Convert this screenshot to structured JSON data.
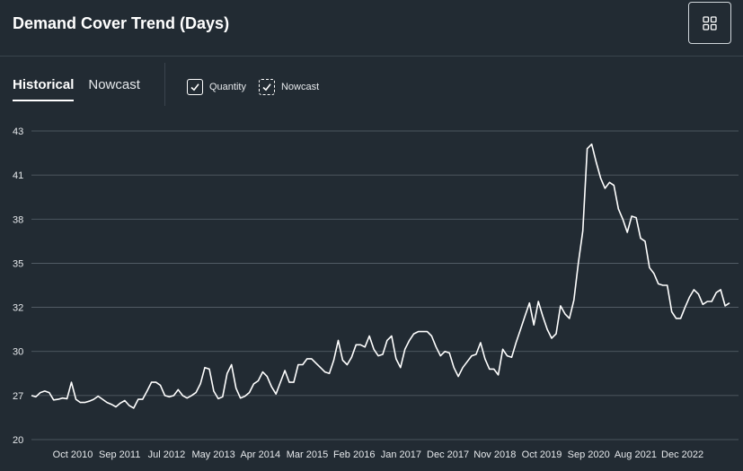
{
  "header": {
    "title": "Demand Cover Trend (Days)"
  },
  "tabs": [
    {
      "label": "Historical",
      "active": true
    },
    {
      "label": "Nowcast",
      "active": false
    }
  ],
  "legend": {
    "quantity_label": "Quantity",
    "nowcast_label": "Nowcast"
  },
  "colors": {
    "background": "#222b33",
    "line": "#ffffff",
    "grid": "#5a646d"
  },
  "chart_data": {
    "type": "line",
    "title": "Demand Cover Trend (Days)",
    "xlabel": "",
    "ylabel": "",
    "grid": true,
    "y_ticks": [
      "43",
      "41",
      "38",
      "35",
      "32",
      "30",
      "27",
      "20"
    ],
    "x_ticks": [
      "Oct 2010",
      "Sep 2011",
      "Jul 2012",
      "May 2013",
      "Apr 2014",
      "Mar 2015",
      "Feb 2016",
      "Jan 2017",
      "Dec 2017",
      "Nov 2018",
      "Oct 2019",
      "Sep 2020",
      "Aug 2021",
      "Dec 2022"
    ],
    "series": [
      {
        "name": "Quantity",
        "values": [
          27.0,
          26.8,
          27.2,
          27.3,
          27.2,
          26.3,
          26.4,
          26.6,
          26.5,
          27.9,
          26.4,
          25.9,
          25.9,
          26.1,
          26.4,
          26.9,
          26.4,
          25.9,
          25.6,
          25.2,
          25.8,
          26.2,
          25.4,
          25.0,
          26.4,
          26.4,
          27.3,
          27.9,
          27.9,
          27.7,
          27.0,
          26.8,
          27.0,
          27.4,
          27.0,
          26.6,
          27.0,
          27.2,
          27.8,
          28.9,
          28.8,
          27.3,
          26.5,
          26.8,
          28.5,
          29.1,
          27.5,
          26.6,
          26.9,
          27.2,
          27.8,
          28.0,
          28.6,
          28.3,
          27.6,
          27.1,
          27.9,
          28.7,
          27.9,
          27.9,
          29.1,
          29.1,
          29.5,
          29.5,
          29.2,
          28.9,
          28.6,
          28.5,
          29.4,
          30.5,
          29.4,
          29.1,
          29.6,
          30.3,
          30.3,
          30.2,
          30.7,
          30.1,
          29.7,
          29.8,
          30.5,
          30.7,
          29.5,
          28.9,
          30.1,
          30.5,
          30.8,
          30.9,
          30.9,
          30.9,
          30.7,
          30.2,
          29.7,
          30.0,
          29.9,
          28.9,
          28.3,
          28.9,
          29.3,
          29.7,
          29.8,
          30.4,
          29.5,
          28.8,
          28.8,
          28.4,
          30.1,
          29.7,
          29.6,
          30.4,
          31.0,
          31.6,
          32.3,
          31.2,
          32.4,
          31.6,
          31.0,
          30.6,
          30.8,
          32.1,
          31.7,
          31.5,
          32.5,
          35.0,
          37.2,
          42.2,
          42.4,
          41.6,
          40.8,
          40.1,
          40.5,
          40.3,
          38.7,
          38.0,
          37.1,
          38.2,
          38.1,
          36.7,
          36.5,
          34.7,
          34.3,
          33.6,
          33.5,
          33.5,
          31.8,
          31.5,
          31.5,
          32.0,
          32.7,
          33.2,
          32.9,
          32.2,
          32.4,
          32.4,
          33.0,
          33.2,
          32.1,
          32.3
        ]
      }
    ]
  }
}
